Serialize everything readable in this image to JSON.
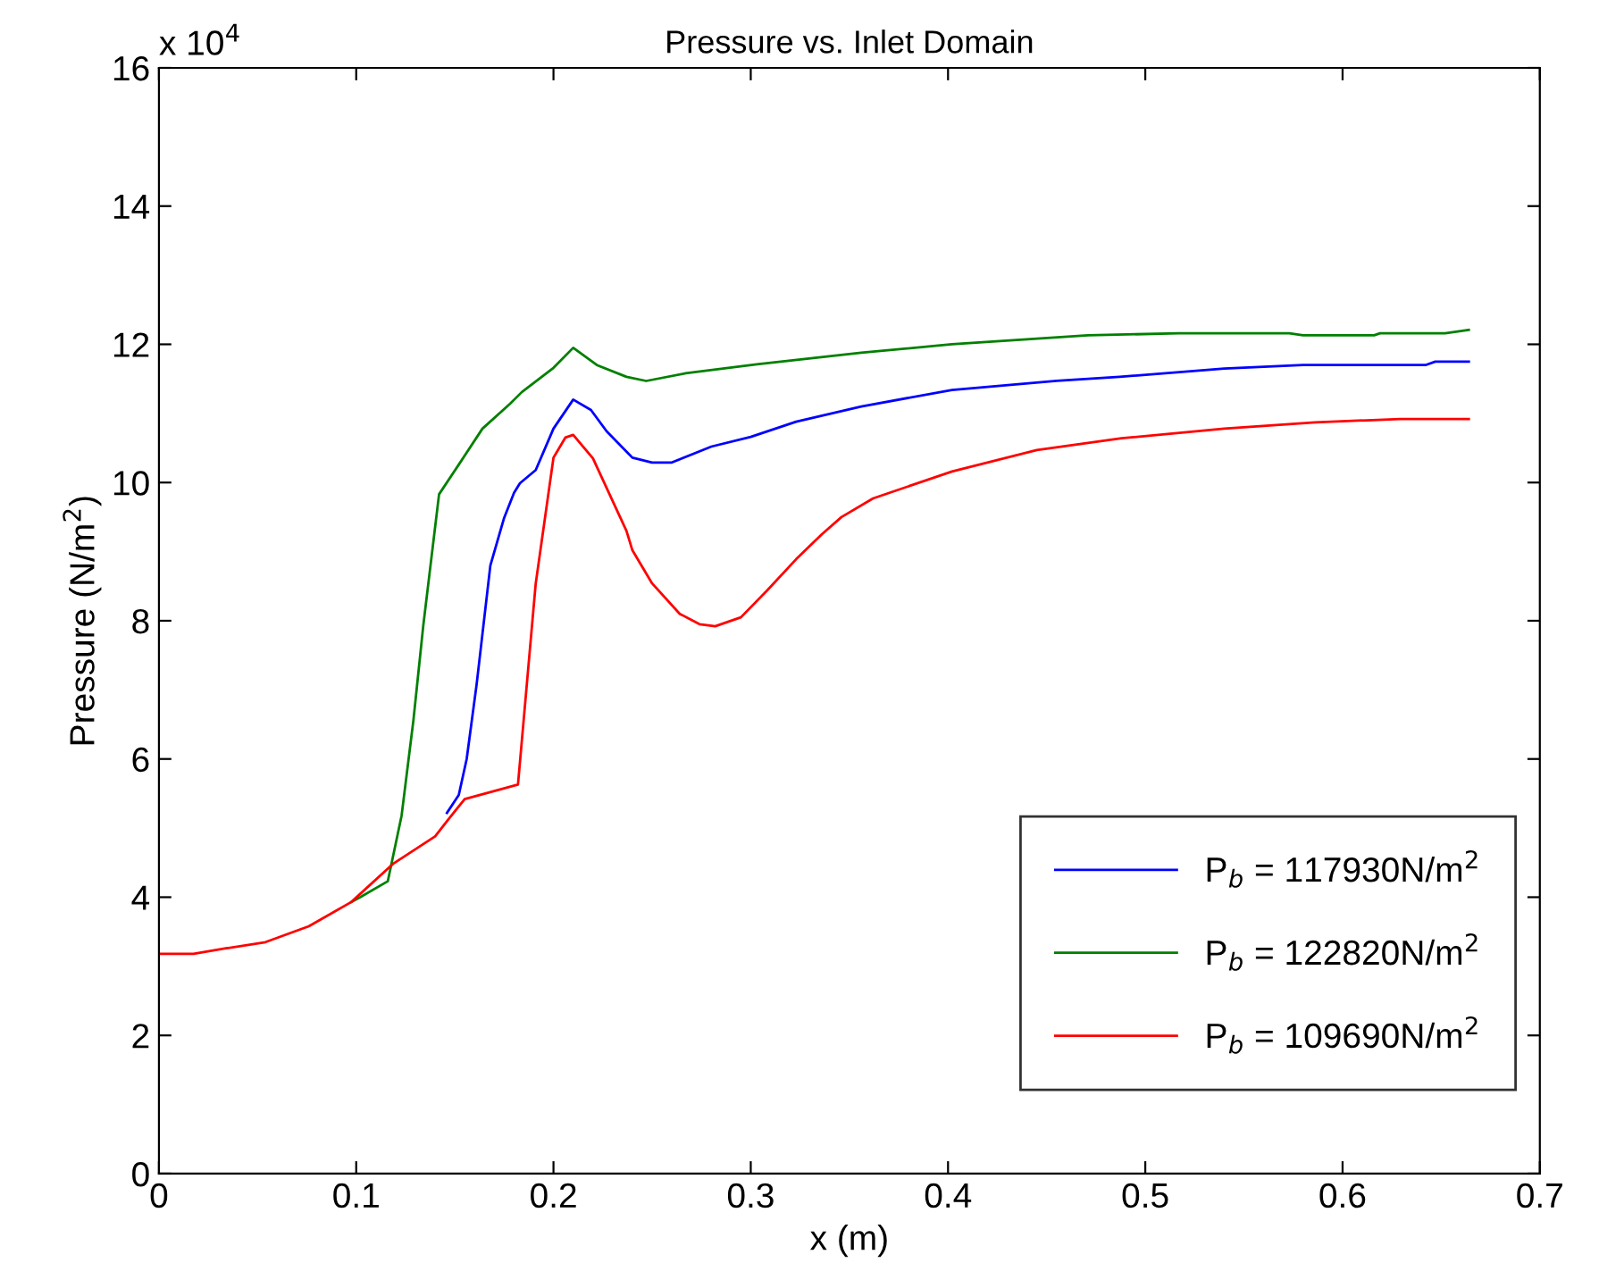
{
  "chart_data": {
    "type": "line",
    "title": "Pressure vs. Inlet Domain",
    "xlabel": "x (m)",
    "ylabel": "Pressure (N/m$^{2}$)",
    "annotations": [
      "x 10$^{4}$"
    ],
    "xlim": [
      0,
      0.7
    ],
    "ylim": [
      0,
      16
    ],
    "xticks": [
      0,
      0.1,
      0.2,
      0.3,
      0.4,
      0.5,
      0.6,
      0.7
    ],
    "yticks": [
      0,
      2,
      4,
      6,
      8,
      10,
      12,
      14,
      16
    ],
    "grid": false,
    "legend": "bottom right",
    "line_style": "solid",
    "marker": "none",
    "series": [
      {
        "name": "P$_{b}$ = 117930N/m$^{2}$",
        "color": "#0000ff",
        "x": [
          0.146,
          0.152,
          0.156,
          0.161,
          0.168,
          0.175,
          0.18,
          0.183,
          0.191,
          0.2,
          0.21,
          0.219,
          0.227,
          0.24,
          0.25,
          0.26,
          0.28,
          0.3,
          0.323,
          0.356,
          0.402,
          0.455,
          0.487,
          0.54,
          0.58,
          0.642,
          0.647,
          0.664
        ],
        "values": [
          5.22,
          5.48,
          6.0,
          7.07,
          8.8,
          9.49,
          9.85,
          9.99,
          10.18,
          10.78,
          11.2,
          11.05,
          10.74,
          10.36,
          10.29,
          10.29,
          10.52,
          10.66,
          10.88,
          11.1,
          11.34,
          11.47,
          11.53,
          11.65,
          11.7,
          11.7,
          11.75,
          11.75
        ]
      },
      {
        "name": "P$_{b}$ = 122820N/m$^{2}$",
        "color": "#008000",
        "x": [
          0.0975,
          0.102,
          0.116,
          0.123,
          0.129,
          0.134,
          0.142,
          0.152,
          0.164,
          0.178,
          0.184,
          0.2,
          0.21,
          0.222,
          0.237,
          0.247,
          0.267,
          0.303,
          0.356,
          0.402,
          0.471,
          0.517,
          0.573,
          0.58,
          0.616,
          0.619,
          0.652,
          0.664
        ],
        "values": [
          3.93,
          4.0,
          4.23,
          5.18,
          6.56,
          7.93,
          9.83,
          10.26,
          10.78,
          11.14,
          11.31,
          11.66,
          11.95,
          11.7,
          11.53,
          11.47,
          11.58,
          11.71,
          11.88,
          12.0,
          12.13,
          12.16,
          12.16,
          12.13,
          12.13,
          12.16,
          12.16,
          12.21
        ]
      },
      {
        "name": "P$_{b}$ = 109690N/m$^{2}$",
        "color": "#ff0000",
        "x": [
          0,
          0.0175,
          0.034,
          0.054,
          0.076,
          0.0975,
          0.119,
          0.14,
          0.146,
          0.155,
          0.182,
          0.191,
          0.2,
          0.206,
          0.21,
          0.22,
          0.237,
          0.24,
          0.25,
          0.264,
          0.274,
          0.282,
          0.295,
          0.308,
          0.323,
          0.336,
          0.346,
          0.362,
          0.402,
          0.445,
          0.488,
          0.54,
          0.586,
          0.629,
          0.664
        ],
        "values": [
          3.18,
          3.18,
          3.26,
          3.35,
          3.58,
          3.93,
          4.49,
          4.88,
          5.1,
          5.42,
          5.63,
          8.54,
          10.36,
          10.65,
          10.69,
          10.35,
          9.3,
          9.02,
          8.54,
          8.1,
          7.95,
          7.92,
          8.05,
          8.43,
          8.89,
          9.25,
          9.5,
          9.77,
          10.16,
          10.47,
          10.64,
          10.78,
          10.87,
          10.92,
          10.92
        ]
      }
    ]
  }
}
